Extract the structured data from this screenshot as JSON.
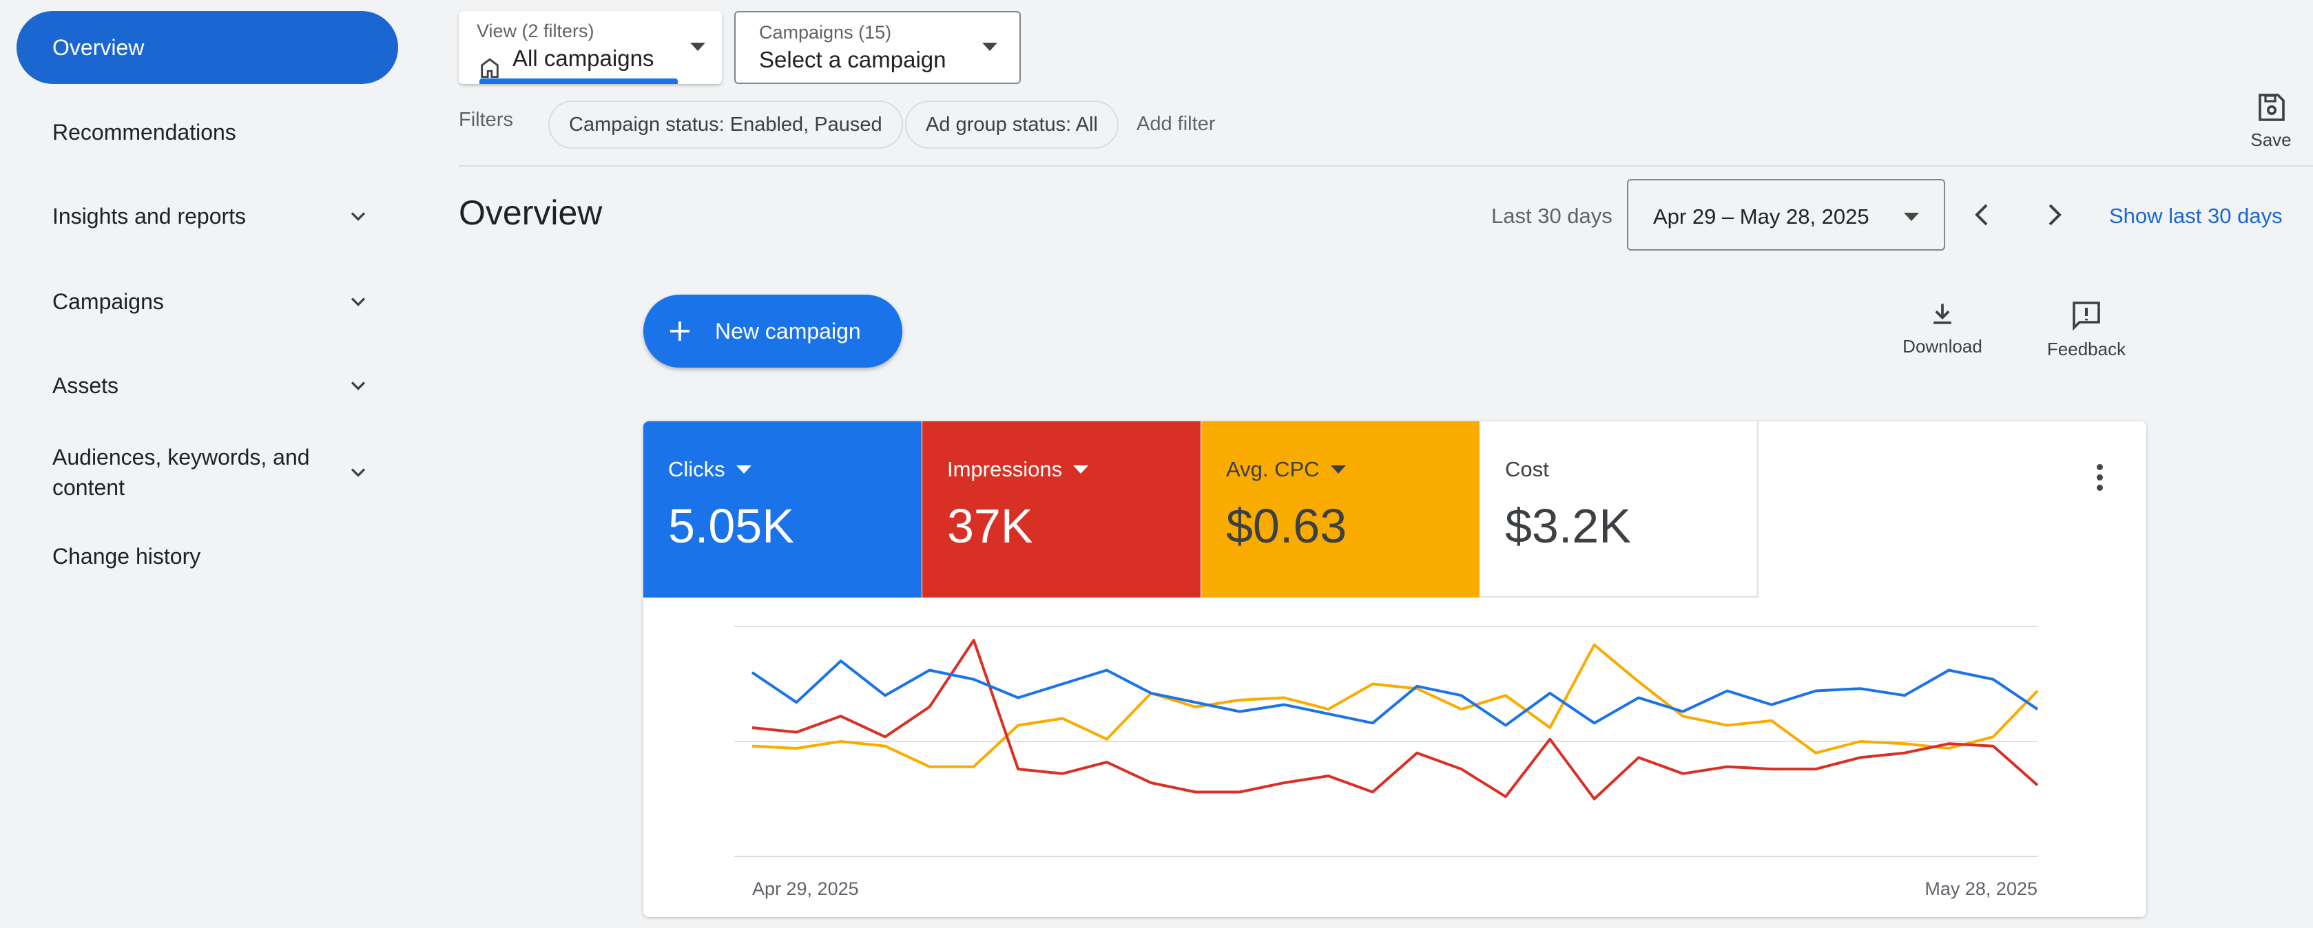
{
  "sidebar": {
    "items": [
      {
        "label": "Overview",
        "active": true,
        "expandable": false
      },
      {
        "label": "Recommendations",
        "expandable": false
      },
      {
        "label": "Insights and reports",
        "expandable": true
      },
      {
        "label": "Campaigns",
        "expandable": true
      },
      {
        "label": "Assets",
        "expandable": true
      },
      {
        "label": "Audiences, keywords, and content",
        "expandable": true
      },
      {
        "label": "Change history",
        "expandable": false
      }
    ]
  },
  "topbar": {
    "view_caption": "View (2 filters)",
    "view_value": "All campaigns",
    "campaigns_caption": "Campaigns (15)",
    "campaigns_value": "Select a campaign",
    "filters_label": "Filters",
    "chips": [
      "Campaign status: Enabled, Paused",
      "Ad group status: All"
    ],
    "add_filter": "Add filter",
    "save_label": "Save"
  },
  "header": {
    "title": "Overview",
    "range_label": "Last 30 days",
    "date_range": "Apr 29 – May 28, 2025",
    "show_last": "Show last 30 days"
  },
  "actions": {
    "new_campaign": "New campaign",
    "download": "Download",
    "feedback": "Feedback"
  },
  "metrics": {
    "clicks": {
      "label": "Clicks",
      "value": "5.05K",
      "color": "#1a73e8"
    },
    "impressions": {
      "label": "Impressions",
      "value": "37K",
      "color": "#d93025"
    },
    "avg_cpc": {
      "label": "Avg. CPC",
      "value": "$0.63",
      "color": "#f9ab00"
    },
    "cost": {
      "label": "Cost",
      "value": "$3.2K"
    }
  },
  "chart_data": {
    "type": "line",
    "x_start_label": "Apr 29, 2025",
    "x_end_label": "May 28, 2025",
    "grid": true,
    "series_colors": [
      "#1a73e8",
      "#d93025",
      "#f9ab00"
    ],
    "series": [
      {
        "values": [
          0.8,
          0.67,
          0.85,
          0.7,
          0.81,
          0.77,
          0.69,
          0.75,
          0.81,
          0.71,
          0.67,
          0.63,
          0.66,
          0.62,
          0.58,
          0.74,
          0.7,
          0.57,
          0.71,
          0.58,
          0.69,
          0.63,
          0.72,
          0.66,
          0.72,
          0.73,
          0.7,
          0.81,
          0.77,
          0.64
        ]
      },
      {
        "values": [
          0.56,
          0.54,
          0.61,
          0.52,
          0.65,
          0.94,
          0.38,
          0.36,
          0.41,
          0.32,
          0.28,
          0.28,
          0.32,
          0.35,
          0.28,
          0.45,
          0.38,
          0.26,
          0.51,
          0.25,
          0.43,
          0.36,
          0.39,
          0.38,
          0.38,
          0.43,
          0.45,
          0.49,
          0.48,
          0.31
        ]
      },
      {
        "values": [
          0.48,
          0.47,
          0.5,
          0.48,
          0.39,
          0.39,
          0.57,
          0.6,
          0.51,
          0.71,
          0.65,
          0.68,
          0.69,
          0.64,
          0.75,
          0.73,
          0.64,
          0.7,
          0.56,
          0.92,
          0.76,
          0.61,
          0.57,
          0.59,
          0.45,
          0.5,
          0.49,
          0.47,
          0.52,
          0.72
        ]
      }
    ]
  }
}
